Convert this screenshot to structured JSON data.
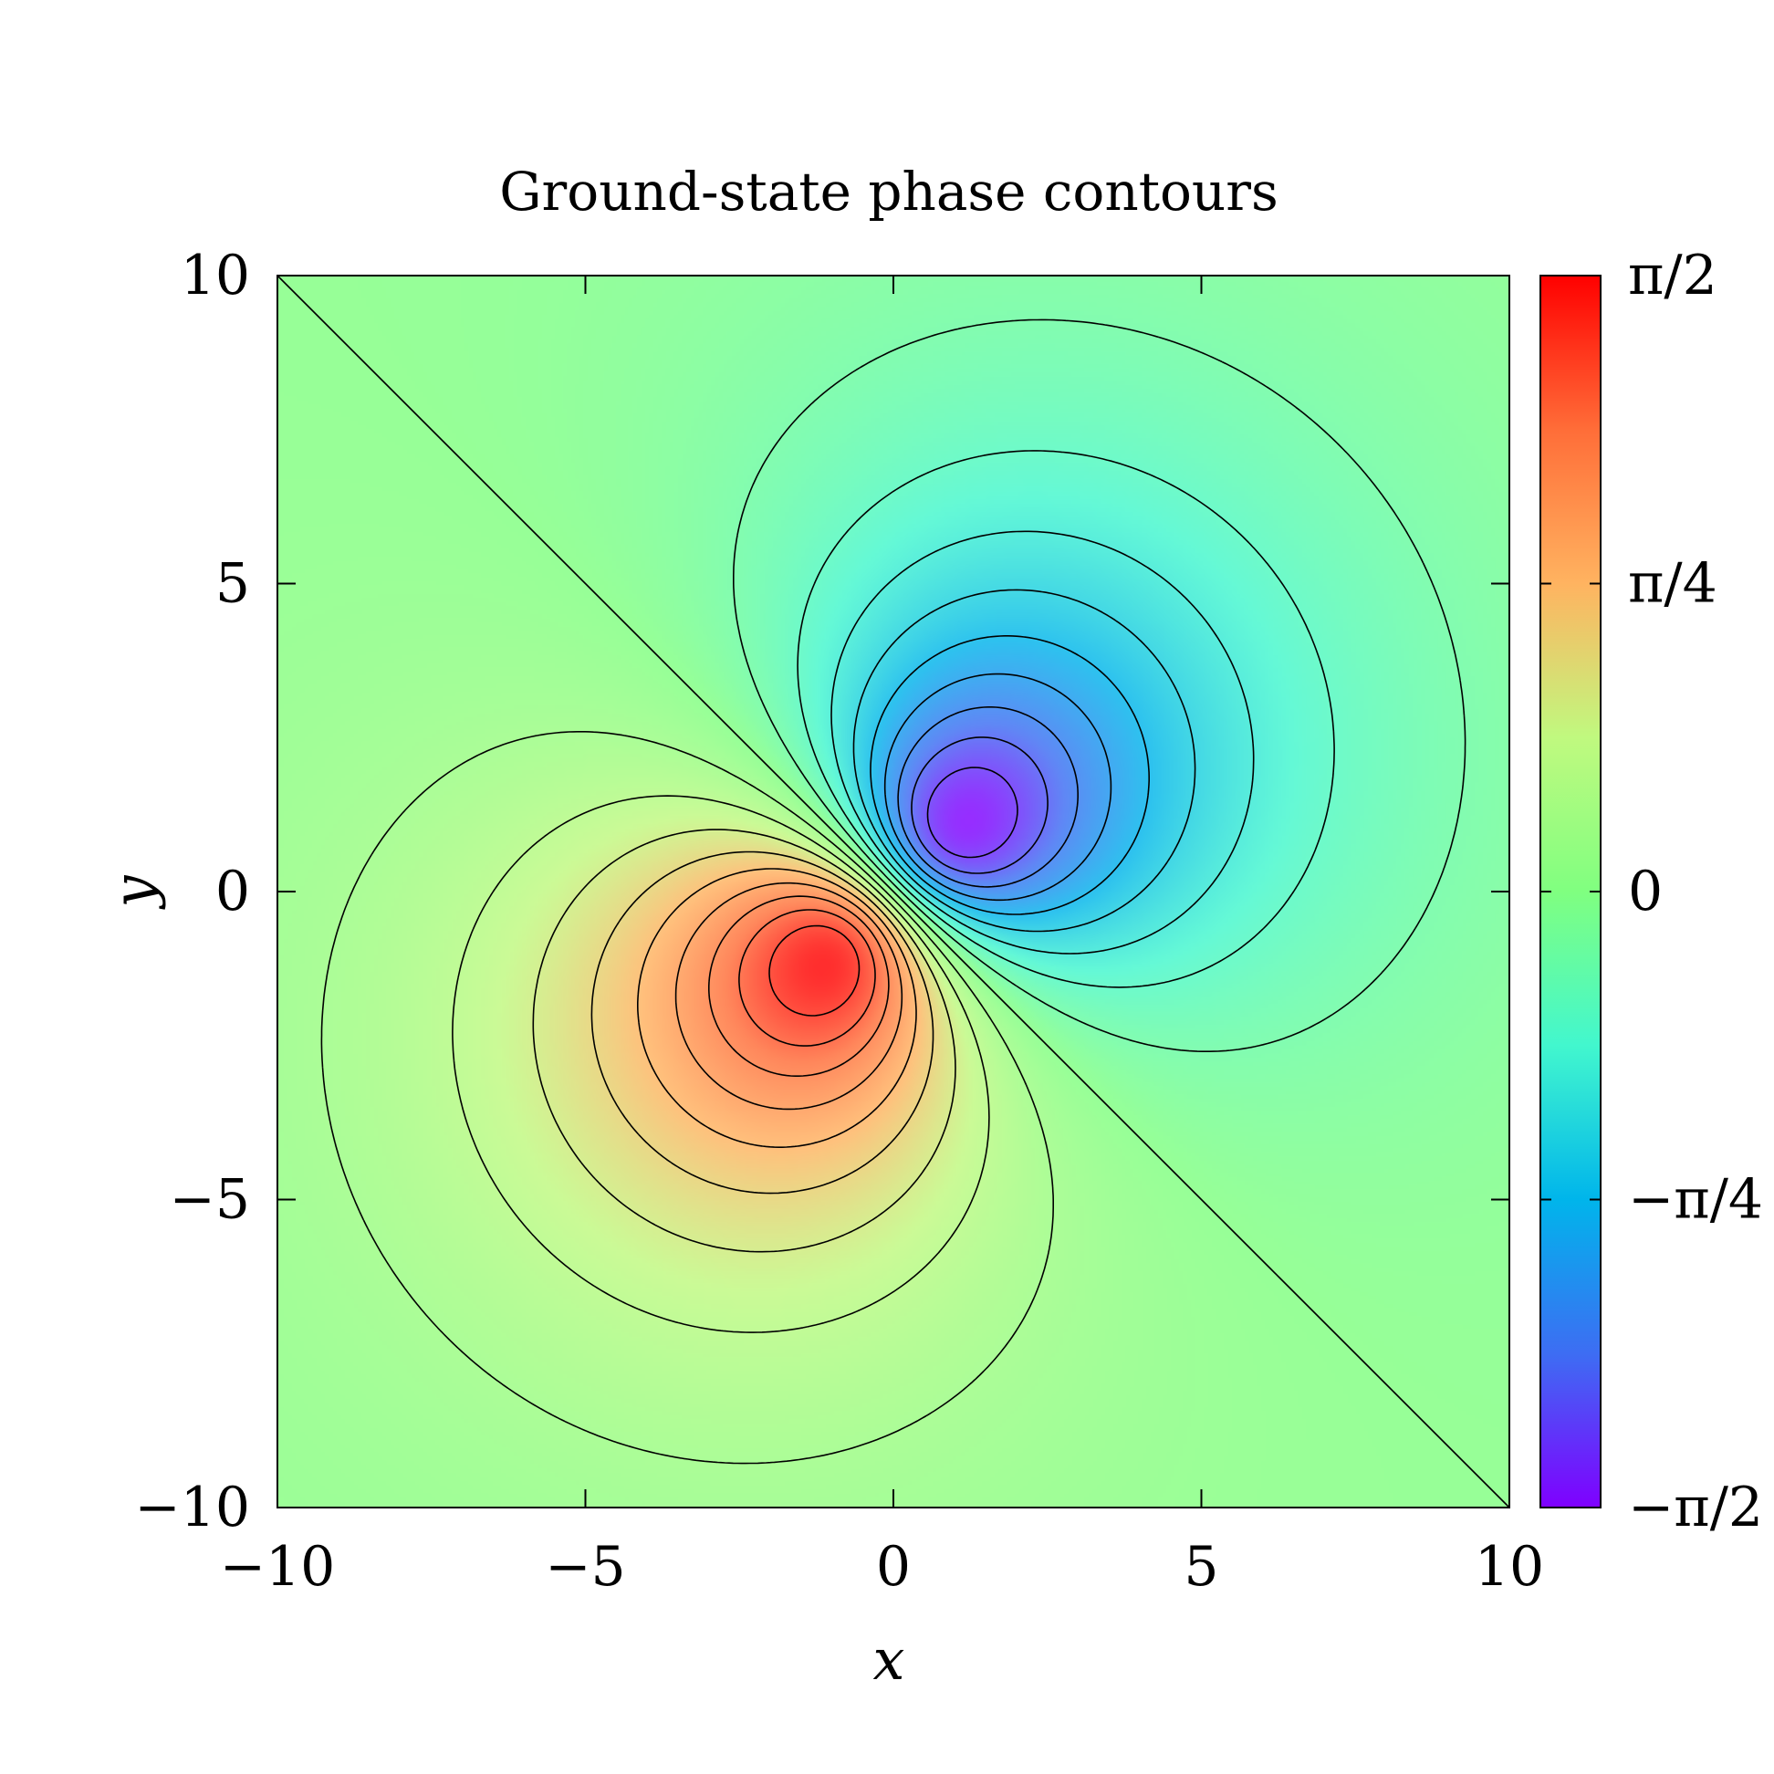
{
  "chart_data": {
    "type": "heatmap",
    "title": "Ground-state phase contours",
    "xlabel": "x",
    "ylabel": "y",
    "xlim": [
      -10,
      10
    ],
    "ylim": [
      -10,
      10
    ],
    "xticks": [
      -10,
      -5,
      0,
      5,
      10
    ],
    "xtick_labels": [
      "−10",
      "−5",
      "0",
      "5",
      "10"
    ],
    "yticks": [
      -10,
      -5,
      0,
      5,
      10
    ],
    "ytick_labels": [
      "−10",
      "−5",
      "0",
      "5",
      "10"
    ],
    "colorbar": {
      "range": [
        -1.5708,
        1.5708
      ],
      "ticks": [
        -1.5708,
        -0.7854,
        0,
        0.7854,
        1.5708
      ],
      "tick_labels": [
        "−π/2",
        "−π/4",
        "0",
        "π/4",
        "π/2"
      ],
      "colormap": "rainbow",
      "colors": [
        "#7f00ff",
        "#3d6df3",
        "#00b5eb",
        "#42f7ce",
        "#80ff80",
        "#c0f97f",
        "#ffb360",
        "#ff6d38",
        "#ff0000"
      ]
    },
    "field": {
      "description_of_extrema": "minimum (−π/2) near (1.2, 1.2); maximum (π/2) near (−1.2, −1.2); singular point at (0, 0); zero-phase line along y = −x",
      "min_location": [
        1.2,
        1.2
      ],
      "max_location": [
        -1.2,
        -1.2
      ]
    },
    "contour_levels": 20,
    "grid": false,
    "legend": "none"
  }
}
